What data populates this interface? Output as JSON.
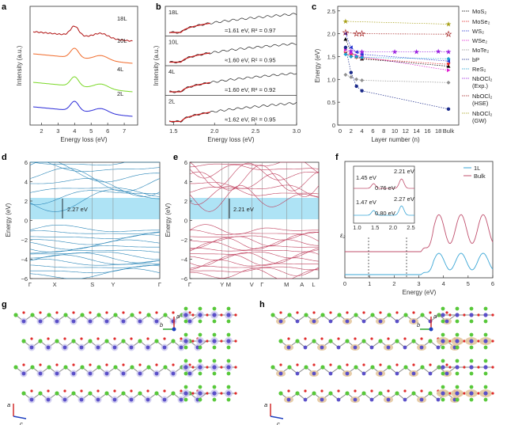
{
  "panels": {
    "a": {
      "label": "a",
      "ylabel": "Intensity (a.u.)",
      "xlabel": "Energy loss (eV)",
      "xticks": [
        "2",
        "3",
        "4",
        "5",
        "6",
        "7"
      ],
      "curves": [
        {
          "name": "18L",
          "color": "#b01010"
        },
        {
          "name": "10L",
          "color": "#f06a2a"
        },
        {
          "name": "4L",
          "color": "#7ad826"
        },
        {
          "name": "2L",
          "color": "#2a2ad8"
        }
      ]
    },
    "b": {
      "label": "b",
      "ylabel": "Intensity (a.u.)",
      "xlabel": "Energy loss (eV)",
      "xticks": [
        "1.5",
        "2.0",
        "2.5",
        "3.0"
      ],
      "rows": [
        {
          "layer": "18L",
          "fit": "≈1.61 eV, R² = 0.97"
        },
        {
          "layer": "10L",
          "fit": "≈1.60 eV, R² = 0.95"
        },
        {
          "layer": "4L",
          "fit": "≈1.60 eV, R² = 0.92"
        },
        {
          "layer": "2L",
          "fit": "≈1.62 eV, R² = 0.95"
        }
      ]
    },
    "c": {
      "label": "c",
      "ylabel": "Energy (eV)",
      "xlabel": "Layer number (n)",
      "yticks": [
        "0",
        "0.5",
        "1.0",
        "1.5",
        "2.0",
        "2.5"
      ],
      "xticks": [
        "0",
        "2",
        "4",
        "6",
        "8",
        "10",
        "12",
        "14",
        "16",
        "18",
        "Bulk"
      ],
      "legend": [
        "MoS₂",
        "MoSe₂",
        "WS₂",
        "WSe₂",
        "MoTe₂",
        "bP",
        "ReS₂",
        "NbOCl₂ (Exp.)",
        "NbOCl₂ (HSE)",
        "NbOCl₂ (GW)"
      ]
    },
    "d": {
      "label": "d",
      "ylabel": "Energy (eV)",
      "gap": "2.27 eV",
      "yticks": [
        "6",
        "4",
        "2",
        "0",
        "−2",
        "−4",
        "−6"
      ],
      "kpoints": [
        "Γ",
        "X",
        "S",
        "Y",
        "Γ"
      ]
    },
    "e": {
      "label": "e",
      "ylabel": "Energy (eV)",
      "gap": "2.21 eV",
      "yticks": [
        "6",
        "4",
        "2",
        "0",
        "−2",
        "−4",
        "−6"
      ],
      "kpoints": [
        "Γ",
        "Y",
        "M",
        "V",
        "Γ",
        "M",
        "A",
        "L"
      ]
    },
    "f": {
      "label": "f",
      "ylabel": "ε₂",
      "xlabel": "Energy (eV)",
      "xticks": [
        "0",
        "1",
        "2",
        "3",
        "4",
        "5",
        "6"
      ],
      "inset_xticks": [
        "1.0",
        "1.5",
        "2.0",
        "2.5"
      ],
      "inset_labels": [
        "1.45 eV",
        "2.21 eV",
        "0.76 eV",
        "1.47 eV",
        "2.27 eV",
        "0.80 eV"
      ],
      "legend": [
        "1L",
        "Bulk"
      ]
    },
    "g": {
      "label": "g",
      "axes": [
        "a",
        "b",
        "a",
        "c"
      ]
    },
    "h": {
      "label": "h",
      "axes": [
        "a",
        "b",
        "a",
        "c"
      ]
    }
  },
  "chart_data": [
    {
      "type": "line",
      "panel": "a",
      "x_range": [
        1.5,
        7.5
      ],
      "xlabel": "Energy loss (eV)",
      "ylabel": "Intensity (a.u.)",
      "series": [
        {
          "name": "18L"
        },
        {
          "name": "10L"
        },
        {
          "name": "4L"
        },
        {
          "name": "2L"
        }
      ]
    },
    {
      "type": "line",
      "panel": "b",
      "x_range": [
        1.4,
        3.0
      ],
      "xlabel": "Energy loss (eV)",
      "ylabel": "Intensity (a.u.)"
    },
    {
      "type": "scatter",
      "panel": "c",
      "ylim": [
        0,
        2.5
      ],
      "xlabel": "Layer number (n)",
      "ylabel": "Energy (eV)",
      "series": [
        {
          "name": "MoS₂",
          "x": [
            1,
            2,
            3,
            4,
            "Bulk"
          ],
          "y": [
            1.88,
            1.6,
            1.5,
            1.45,
            1.29
          ]
        },
        {
          "name": "MoSe₂",
          "x": [
            1,
            2,
            3,
            4,
            "Bulk"
          ],
          "y": [
            1.57,
            1.52,
            1.48,
            1.46,
            1.33
          ]
        },
        {
          "name": "WS₂",
          "x": [
            1,
            2,
            3,
            4,
            "Bulk"
          ],
          "y": [
            2.0,
            1.7,
            1.6,
            1.55,
            1.4
          ]
        },
        {
          "name": "WSe₂",
          "x": [
            1,
            2,
            3,
            4,
            "Bulk"
          ],
          "y": [
            1.65,
            1.58,
            1.52,
            1.5,
            1.2
          ]
        },
        {
          "name": "MoTe₂",
          "x": [
            1,
            2,
            3,
            4,
            "Bulk"
          ],
          "y": [
            1.1,
            1.05,
            1.0,
            0.98,
            0.93
          ]
        },
        {
          "name": "bP",
          "x": [
            1,
            2,
            3,
            4,
            "Bulk"
          ],
          "y": [
            1.7,
            1.15,
            0.85,
            0.75,
            0.35
          ]
        },
        {
          "name": "ReS₂",
          "x": [
            1,
            2,
            3,
            4,
            "Bulk"
          ],
          "y": [
            1.55,
            1.5,
            1.5,
            1.48,
            1.45
          ]
        },
        {
          "name": "NbOCl₂ (Exp.)",
          "x": [
            2,
            4,
            10,
            14,
            18,
            "Bulk"
          ],
          "y": [
            1.62,
            1.6,
            1.6,
            1.6,
            1.61,
            1.6
          ]
        },
        {
          "name": "NbOCl₂ (HSE)",
          "x": [
            1,
            3,
            4,
            "Bulk"
          ],
          "y": [
            2.03,
            2.0,
            2.0,
            1.99
          ]
        },
        {
          "name": "NbOCl₂ (GW)",
          "x": [
            1,
            "Bulk"
          ],
          "y": [
            2.27,
            2.21
          ]
        }
      ]
    },
    {
      "type": "line",
      "panel": "d",
      "ylim": [
        -6,
        6
      ],
      "gap_eV": 2.27
    },
    {
      "type": "line",
      "panel": "e",
      "ylim": [
        -6,
        6
      ],
      "gap_eV": 2.21
    },
    {
      "type": "line",
      "panel": "f",
      "x_range": [
        0,
        6
      ],
      "series": [
        {
          "name": "1L"
        },
        {
          "name": "Bulk"
        }
      ]
    }
  ]
}
